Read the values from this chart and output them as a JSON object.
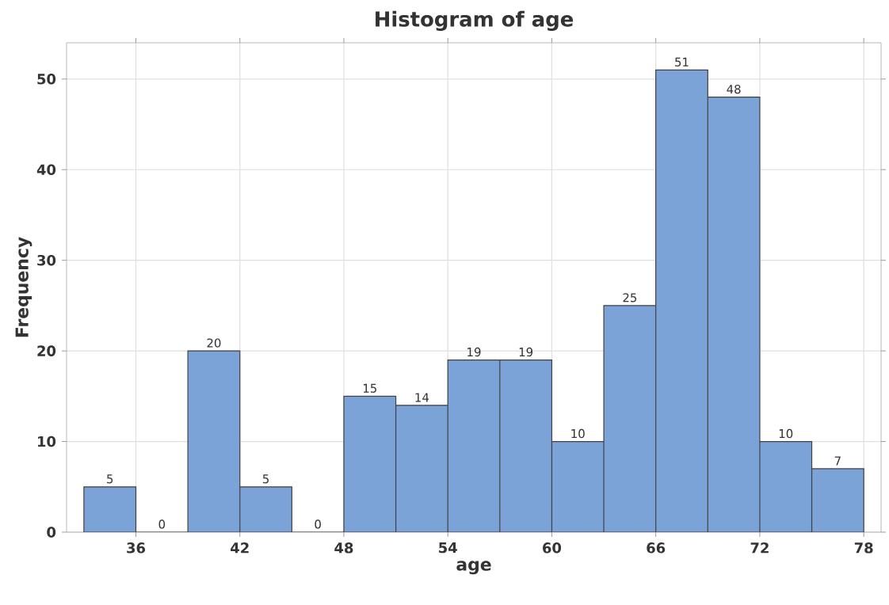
{
  "chart_data": {
    "type": "histogram",
    "title": "Histogram of age",
    "xlabel": "age",
    "ylabel": "Frequency",
    "bins": [
      33,
      36,
      39,
      42,
      45,
      48,
      51,
      54,
      57,
      60,
      63,
      66,
      69,
      72,
      75,
      78
    ],
    "values": [
      5,
      0,
      20,
      5,
      0,
      15,
      14,
      19,
      19,
      10,
      25,
      51,
      48,
      10,
      7
    ],
    "color": "#7ba3d8",
    "xlim": [
      32,
      79
    ],
    "ylim": [
      0,
      54
    ],
    "xticks": [
      36,
      42,
      48,
      54,
      60,
      66,
      72,
      78
    ],
    "yticks": [
      0,
      10,
      20,
      30,
      40,
      50
    ],
    "grid": true,
    "data_labels": true
  }
}
